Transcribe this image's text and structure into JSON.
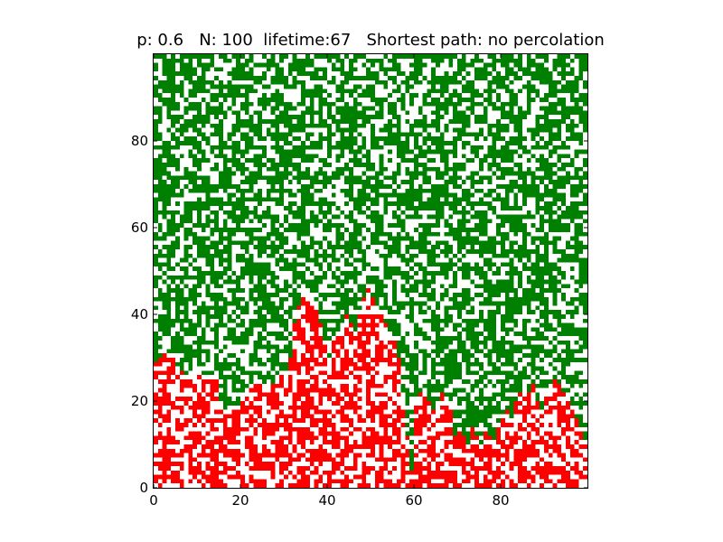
{
  "chart_data": {
    "type": "heatmap",
    "title": "p: 0.6   N: 100  lifetime:67   Shortest path: no percolation",
    "xlabel": "",
    "ylabel": "",
    "xlim": [
      0,
      100
    ],
    "ylim": [
      0,
      100
    ],
    "x_ticks": [
      0,
      20,
      40,
      60,
      80
    ],
    "y_ticks": [
      0,
      20,
      40,
      60,
      80
    ],
    "grid": false,
    "N": 100,
    "p": 0.6,
    "lifetime": 67,
    "cell_states": [
      "empty",
      "occupied",
      "burnt"
    ],
    "colors": {
      "empty": "#ffffff",
      "occupied": "#008000",
      "burnt": "#ff0000"
    },
    "burnt_profile_max_row_by_column": [
      29,
      30,
      31,
      30,
      30,
      28,
      27,
      26,
      26,
      27,
      27,
      26,
      26,
      26,
      26,
      20,
      18,
      17,
      18,
      19,
      20,
      22,
      24,
      25,
      24,
      23,
      23,
      24,
      25,
      26,
      27,
      30,
      38,
      42,
      44,
      46,
      44,
      42,
      38,
      34,
      30,
      34,
      36,
      38,
      40,
      38,
      36,
      40,
      44,
      46,
      44,
      42,
      40,
      38,
      36,
      34,
      30,
      20,
      12,
      4,
      20,
      22,
      22,
      20,
      18,
      20,
      22,
      20,
      18,
      12,
      14,
      12,
      10,
      14,
      12,
      10,
      14,
      12,
      10,
      14,
      16,
      18,
      16,
      20,
      22,
      24,
      22,
      24,
      20,
      18,
      22,
      24,
      25,
      24,
      22,
      20,
      18,
      16,
      14,
      10
    ]
  }
}
